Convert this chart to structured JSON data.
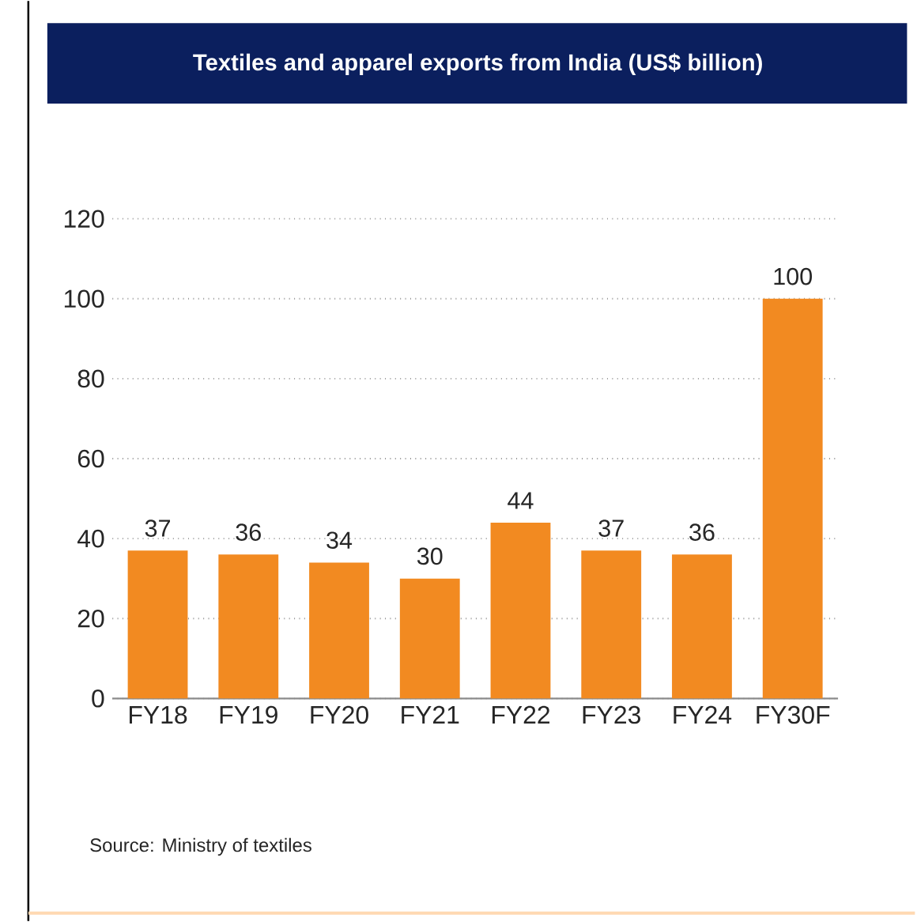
{
  "chart_data": {
    "type": "bar",
    "title": "Textiles and apparel exports from India (US$ billion)",
    "categories": [
      "FY18",
      "FY19",
      "FY20",
      "FY21",
      "FY22",
      "FY23",
      "FY24",
      "FY30F"
    ],
    "values": [
      37,
      36,
      34,
      30,
      44,
      37,
      36,
      100
    ],
    "color": "#f28a21",
    "ylim": [
      0,
      120
    ],
    "yticks": [
      0,
      20,
      40,
      60,
      80,
      100,
      120
    ],
    "grid": "y",
    "data_labels": true,
    "annotations": [
      "Source: Ministry of textiles"
    ]
  }
}
